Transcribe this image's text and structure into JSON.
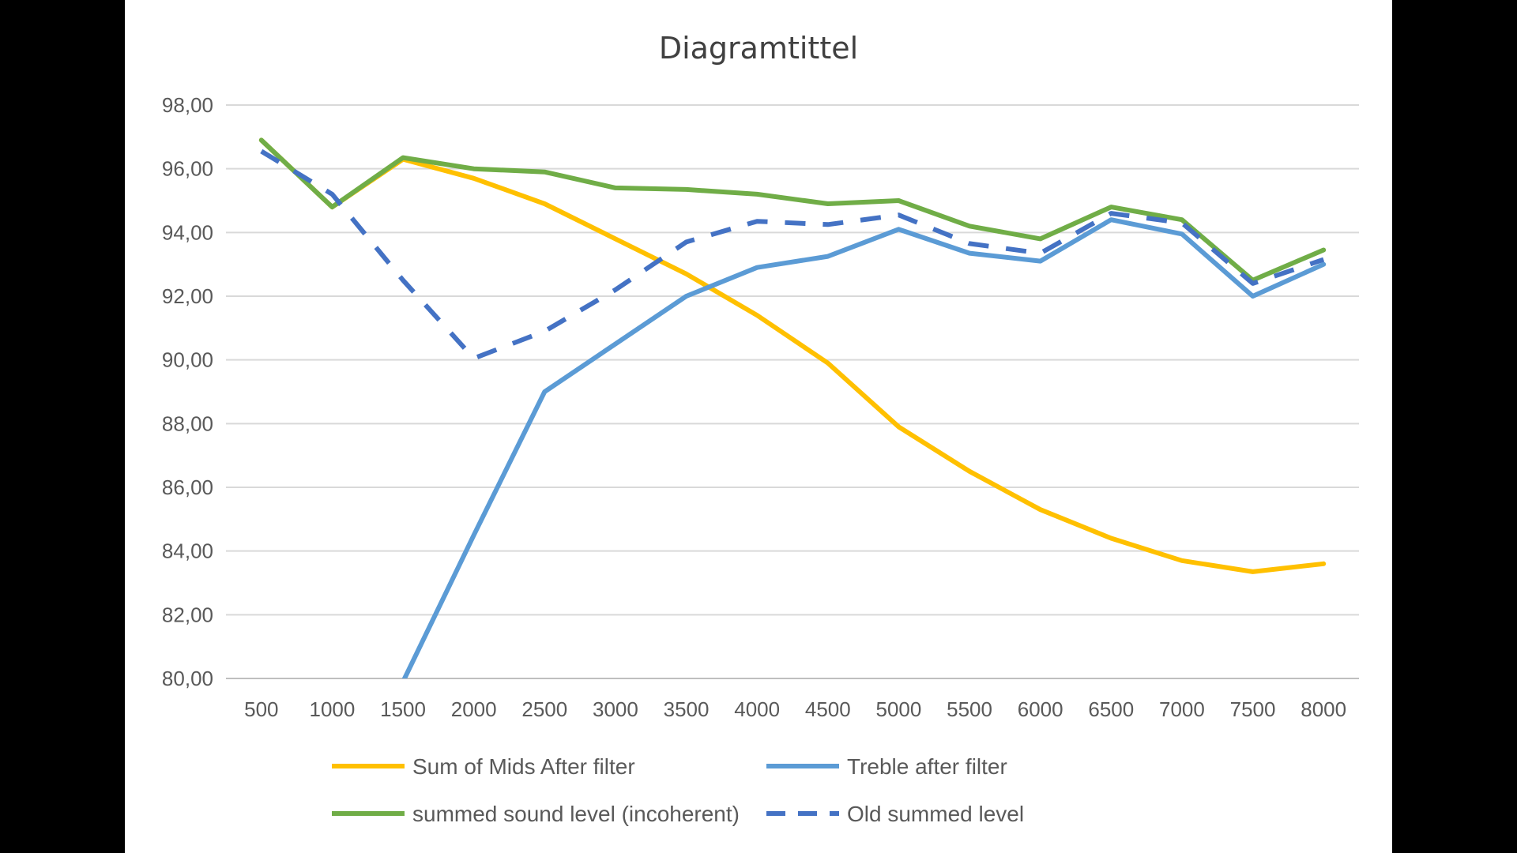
{
  "chart_data": {
    "type": "line",
    "title": "Diagramtittel",
    "xlabel": "",
    "ylabel": "",
    "x": [
      500,
      1000,
      1500,
      2000,
      2500,
      3000,
      3500,
      4000,
      4500,
      5000,
      5500,
      6000,
      6500,
      7000,
      7500,
      8000
    ],
    "y_ticks": [
      "80,00",
      "82,00",
      "84,00",
      "86,00",
      "88,00",
      "90,00",
      "92,00",
      "94,00",
      "96,00",
      "98,00"
    ],
    "ylim": [
      80,
      98
    ],
    "grid": true,
    "legend_position": "bottom",
    "series": [
      {
        "name": "Sum of Mids After filter",
        "color": "#FFC000",
        "dash": false,
        "values": [
          96.9,
          94.8,
          96.3,
          95.7,
          94.9,
          93.8,
          92.7,
          91.4,
          89.9,
          87.9,
          86.5,
          85.3,
          84.4,
          83.7,
          83.35,
          83.6
        ]
      },
      {
        "name": "Treble after filter",
        "color": "#5B9BD5",
        "dash": false,
        "values": [
          null,
          null,
          79.9,
          84.5,
          89.0,
          90.5,
          92.0,
          92.9,
          93.25,
          94.1,
          93.35,
          93.1,
          94.4,
          93.95,
          92.0,
          93.0
        ]
      },
      {
        "name": "summed sound level (incoherent)",
        "color": "#70AD47",
        "dash": false,
        "values": [
          96.9,
          94.8,
          96.35,
          96.0,
          95.9,
          95.4,
          95.35,
          95.2,
          94.9,
          95.0,
          94.2,
          93.8,
          94.8,
          94.4,
          92.5,
          93.45
        ]
      },
      {
        "name": "Old summed level",
        "color": "#4472C4",
        "dash": true,
        "values": [
          96.55,
          95.2,
          92.5,
          90.05,
          90.9,
          92.2,
          93.7,
          94.35,
          94.25,
          94.55,
          93.65,
          93.35,
          94.6,
          94.3,
          92.4,
          93.15
        ]
      }
    ]
  }
}
